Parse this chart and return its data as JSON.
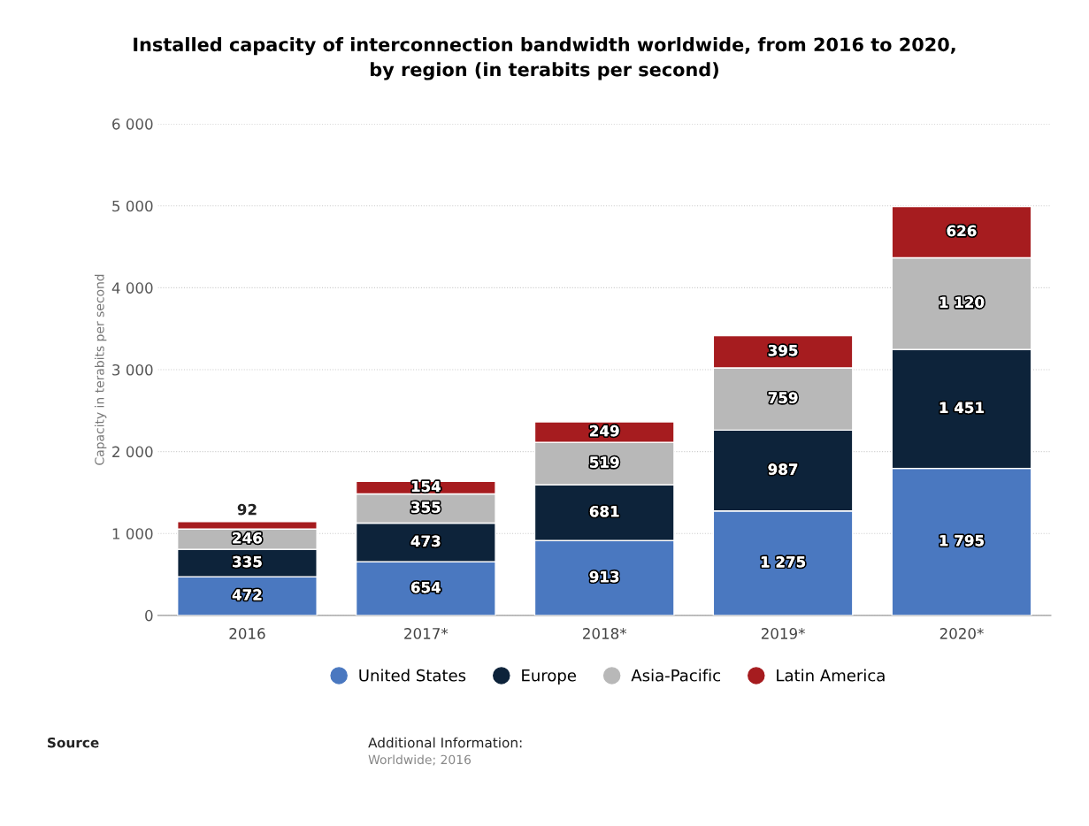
{
  "chart_data": {
    "type": "bar",
    "stacked": true,
    "title": "Installed capacity of interconnection bandwidth worldwide, from 2016 to 2020,\nby region (in terabits per second)",
    "ylabel": "Capacity in terabits per second",
    "categories": [
      "2016",
      "2017*",
      "2018*",
      "2019*",
      "2020*"
    ],
    "series": [
      {
        "name": "United States",
        "color": "#4a78c0",
        "values": [
          472,
          654,
          913,
          1275,
          1795
        ],
        "value_labels": [
          "472",
          "654",
          "913",
          "1 275",
          "1 795"
        ]
      },
      {
        "name": "Europe",
        "color": "#0d233a",
        "values": [
          335,
          473,
          681,
          987,
          1451
        ],
        "value_labels": [
          "335",
          "473",
          "681",
          "987",
          "1 451"
        ]
      },
      {
        "name": "Asia-Pacific",
        "color": "#b8b8b8",
        "values": [
          246,
          355,
          519,
          759,
          1120
        ],
        "value_labels": [
          "246",
          "355",
          "519",
          "759",
          "1 120"
        ]
      },
      {
        "name": "Latin America",
        "color": "#a61c1f",
        "values": [
          92,
          154,
          249,
          395,
          626
        ],
        "value_labels": [
          "92",
          "154",
          "249",
          "395",
          "626"
        ]
      }
    ],
    "ylim": [
      0,
      6000
    ],
    "yticks": [
      0,
      {
        "value": 1000,
        "label": "1 000"
      },
      {
        "value": 2000,
        "label": "2 000"
      },
      {
        "value": 3000,
        "label": "3 000"
      },
      {
        "value": 4000,
        "label": "4 000"
      },
      {
        "value": 5000,
        "label": "5 000"
      },
      {
        "value": 6000,
        "label": "6 000"
      }
    ],
    "grid": "y",
    "legend": "bottom",
    "annotations": [
      "Source",
      "Additional Information:",
      "Worldwide; 2016"
    ]
  }
}
